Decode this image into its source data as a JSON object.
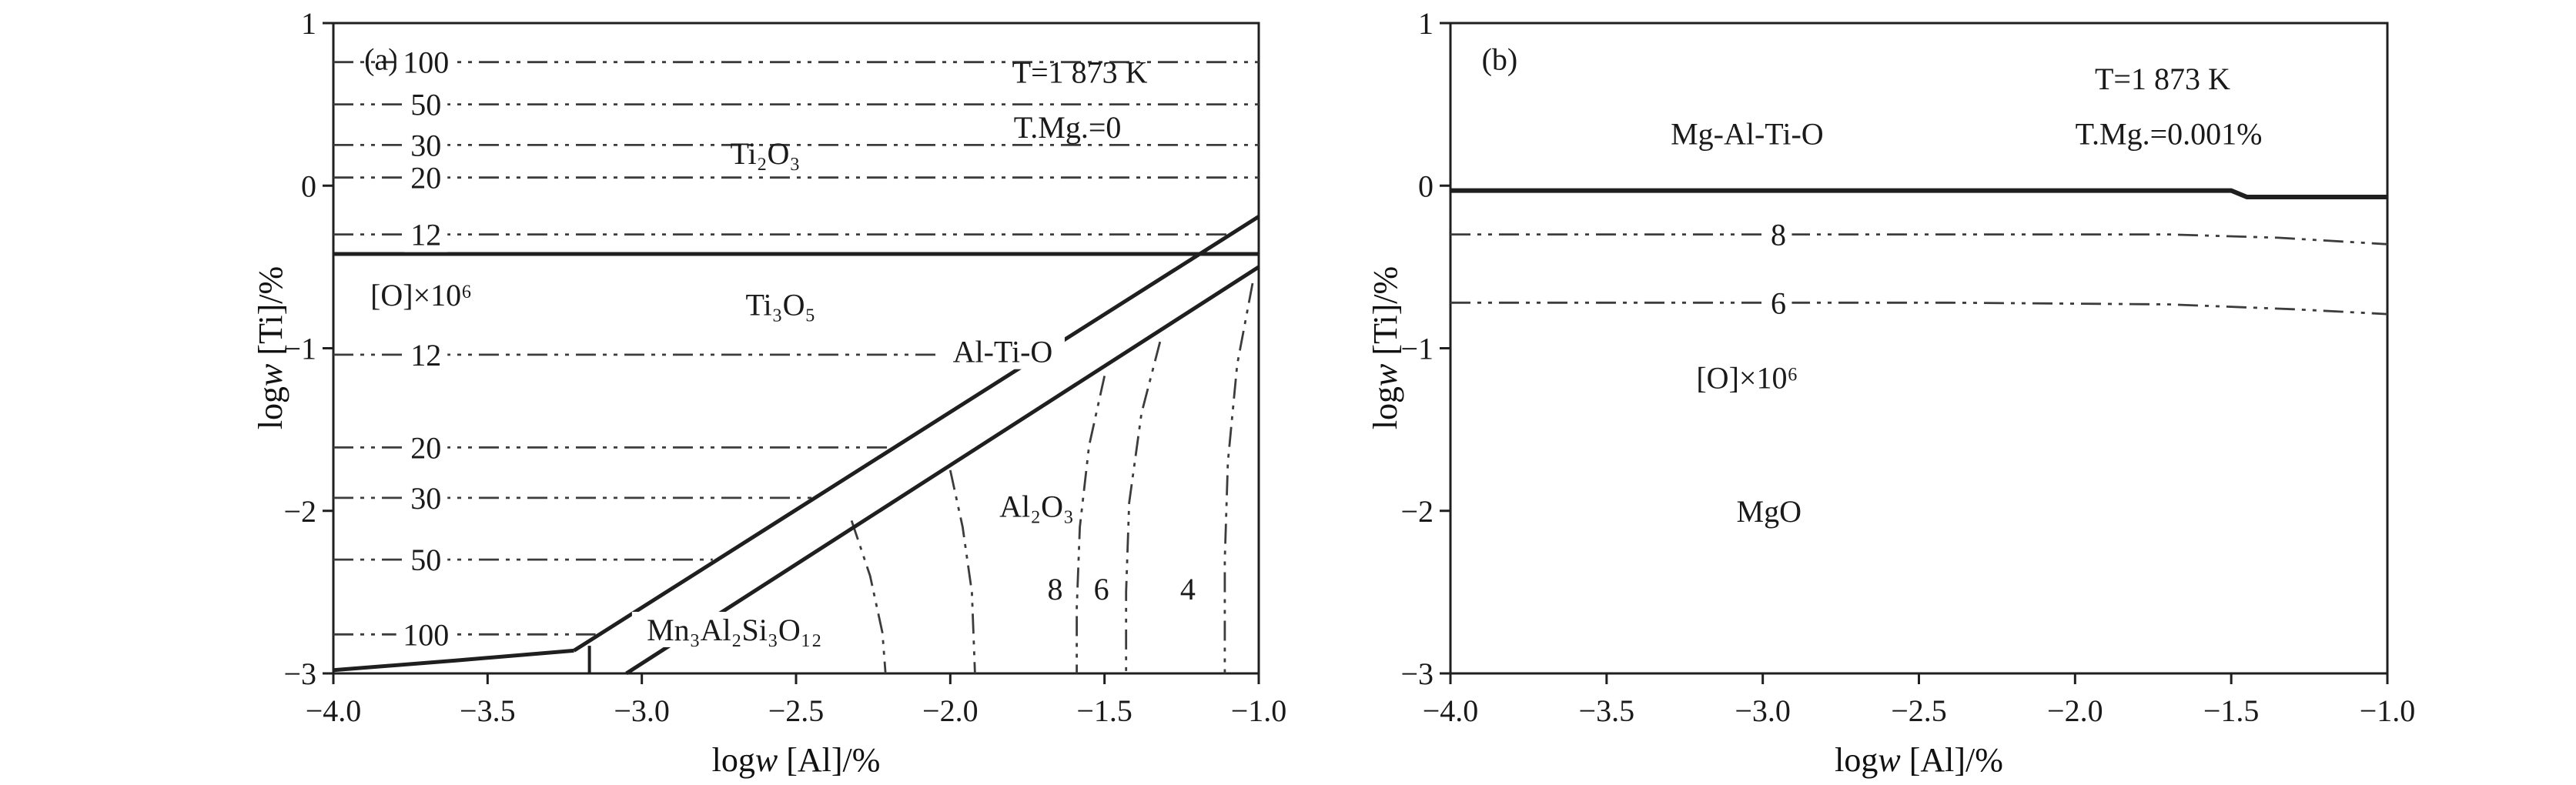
{
  "figure": {
    "background": "#ffffff",
    "ink": "#1f1f1f",
    "contour_color": "#3c3c3c"
  },
  "chart_data": [
    {
      "id": "a",
      "type": "line",
      "panel_label": "(a)",
      "conditions": [
        "T=1 873 K",
        "T.Mg.=0"
      ],
      "xlabel": "logw [Al]/%",
      "ylabel": "logw [Ti]/%",
      "xlabel_parts": {
        "pre": "log",
        "italic": "w",
        "post": " [Al]/%"
      },
      "ylabel_parts": {
        "pre": "log",
        "italic": "w",
        "post": " [Ti]/%"
      },
      "xlim": [
        -4.0,
        -1.0
      ],
      "ylim": [
        -3.0,
        1.0
      ],
      "grid": false,
      "xticks": [
        {
          "v": -4.0,
          "label": "−4.0"
        },
        {
          "v": -3.5,
          "label": "−3.5"
        },
        {
          "v": -3.0,
          "label": "−3.0"
        },
        {
          "v": -2.5,
          "label": "−2.5"
        },
        {
          "v": -2.0,
          "label": "−2.0"
        },
        {
          "v": -1.5,
          "label": "−1.5"
        },
        {
          "v": -1.0,
          "label": "−1.0"
        }
      ],
      "yticks": [
        {
          "v": 1,
          "label": "1"
        },
        {
          "v": 0,
          "label": "0"
        },
        {
          "v": -1,
          "label": "−1"
        },
        {
          "v": -2,
          "label": "−2"
        },
        {
          "v": -3,
          "label": "−3"
        }
      ],
      "phase_boundaries": [
        {
          "name": "Ti2O3-Ti3O5-boundary",
          "width": 5,
          "points": [
            [
              -4.0,
              -0.42
            ],
            [
              -1.0,
              -0.42
            ]
          ]
        },
        {
          "name": "Al-Ti-O-upper-boundary",
          "width": 5,
          "points": [
            [
              -3.22,
              -2.86
            ],
            [
              -1.0,
              -0.19
            ]
          ]
        },
        {
          "name": "Al-Ti-O-lower-boundary",
          "width": 5,
          "points": [
            [
              -3.05,
              -3.0
            ],
            [
              -1.0,
              -0.5
            ]
          ]
        },
        {
          "name": "garnet-left-boundary",
          "width": 5,
          "points": [
            [
              -4.0,
              -2.98
            ],
            [
              -3.6,
              -2.92
            ],
            [
              -3.22,
              -2.86
            ]
          ]
        },
        {
          "name": "triple-point-tick",
          "width": 4,
          "points": [
            [
              -3.17,
              -2.83
            ],
            [
              -3.17,
              -3.0
            ]
          ]
        }
      ],
      "oxygen_contours": [
        {
          "value": 100,
          "points": [
            [
              -4.0,
              0.76
            ],
            [
              -1.0,
              0.76
            ]
          ]
        },
        {
          "value": 50,
          "points": [
            [
              -4.0,
              0.5
            ],
            [
              -1.0,
              0.5
            ]
          ]
        },
        {
          "value": 30,
          "points": [
            [
              -4.0,
              0.25
            ],
            [
              -1.0,
              0.25
            ]
          ]
        },
        {
          "value": 20,
          "points": [
            [
              -4.0,
              0.05
            ],
            [
              -1.0,
              0.05
            ]
          ]
        },
        {
          "value": 12,
          "points": [
            [
              -4.0,
              -0.3
            ],
            [
              -1.09,
              -0.3
            ]
          ]
        },
        {
          "value": 12,
          "points": [
            [
              -4.0,
              -1.04
            ],
            [
              -1.72,
              -1.04
            ]
          ]
        },
        {
          "value": 20,
          "points": [
            [
              -4.0,
              -1.61
            ],
            [
              -2.19,
              -1.61
            ]
          ]
        },
        {
          "value": 30,
          "points": [
            [
              -4.0,
              -1.92
            ],
            [
              -2.45,
              -1.92
            ]
          ]
        },
        {
          "value": 50,
          "points": [
            [
              -4.0,
              -2.3
            ],
            [
              -2.77,
              -2.3
            ]
          ]
        },
        {
          "value": 100,
          "points": [
            [
              -4.0,
              -2.76
            ],
            [
              -3.15,
              -2.76
            ]
          ]
        },
        {
          "value": 20,
          "points": [
            [
              -2.32,
              -2.06
            ],
            [
              -2.26,
              -2.4
            ],
            [
              -2.22,
              -2.75
            ],
            [
              -2.21,
              -3.0
            ]
          ]
        },
        {
          "value": 12,
          "points": [
            [
              -2.0,
              -1.75
            ],
            [
              -1.96,
              -2.1
            ],
            [
              -1.93,
              -2.5
            ],
            [
              -1.92,
              -3.0
            ]
          ]
        },
        {
          "value": 8,
          "points": [
            [
              -1.5,
              -1.17
            ],
            [
              -1.55,
              -1.6
            ],
            [
              -1.58,
              -2.1
            ],
            [
              -1.59,
              -2.6
            ],
            [
              -1.59,
              -3.0
            ]
          ]
        },
        {
          "value": 6,
          "points": [
            [
              -1.32,
              -0.96
            ],
            [
              -1.38,
              -1.4
            ],
            [
              -1.42,
              -1.95
            ],
            [
              -1.43,
              -2.5
            ],
            [
              -1.43,
              -3.0
            ]
          ]
        },
        {
          "value": 4,
          "points": [
            [
              -1.02,
              -0.6
            ],
            [
              -1.07,
              -1.1
            ],
            [
              -1.1,
              -1.7
            ],
            [
              -1.11,
              -2.3
            ],
            [
              -1.11,
              -3.0
            ]
          ]
        }
      ],
      "labels": [
        {
          "text": "(a)",
          "x": -3.9,
          "y": 0.78,
          "anchor": "start",
          "name": "panel-label"
        },
        {
          "text": "T=1 873 K",
          "x": -1.58,
          "y": 0.7,
          "name": "condition-temperature"
        },
        {
          "text": "T.Mg.=0",
          "x": -1.62,
          "y": 0.36,
          "name": "condition-magnesium"
        },
        {
          "text": "Ti₂O₃",
          "x": -2.6,
          "y": 0.2,
          "name": "region-label"
        },
        {
          "text": "Ti₃O₅",
          "x": -2.55,
          "y": -0.73,
          "name": "region-label"
        },
        {
          "text": "Al-Ti-O",
          "x": -1.83,
          "y": -1.02,
          "mask": true,
          "name": "region-label"
        },
        {
          "text": "Al₂O₃",
          "x": -1.72,
          "y": -1.97,
          "name": "region-label"
        },
        {
          "text": "Mn₃Al₂Si₃O₁₂",
          "x": -2.7,
          "y": -2.73,
          "mask": true,
          "name": "region-label"
        },
        {
          "text": "[O]×10⁶",
          "x": -3.88,
          "y": -0.67,
          "anchor": "start",
          "name": "oxygen-scale-label"
        },
        {
          "text": "100",
          "x": -3.7,
          "y": 0.76,
          "mask": true,
          "name": "contour-label"
        },
        {
          "text": "50",
          "x": -3.7,
          "y": 0.5,
          "mask": true,
          "name": "contour-label"
        },
        {
          "text": "30",
          "x": -3.7,
          "y": 0.25,
          "mask": true,
          "name": "contour-label"
        },
        {
          "text": "20",
          "x": -3.7,
          "y": 0.05,
          "mask": true,
          "name": "contour-label"
        },
        {
          "text": "12",
          "x": -3.7,
          "y": -0.3,
          "mask": true,
          "name": "contour-label"
        },
        {
          "text": "12",
          "x": -3.7,
          "y": -1.04,
          "mask": true,
          "name": "contour-label"
        },
        {
          "text": "20",
          "x": -3.7,
          "y": -1.61,
          "mask": true,
          "name": "contour-label"
        },
        {
          "text": "30",
          "x": -3.7,
          "y": -1.92,
          "mask": true,
          "name": "contour-label"
        },
        {
          "text": "50",
          "x": -3.7,
          "y": -2.3,
          "mask": true,
          "name": "contour-label"
        },
        {
          "text": "100",
          "x": -3.7,
          "y": -2.76,
          "mask": true,
          "name": "contour-label"
        },
        {
          "text": "8",
          "x": -1.66,
          "y": -2.48,
          "name": "contour-label"
        },
        {
          "text": "6",
          "x": -1.51,
          "y": -2.48,
          "name": "contour-label"
        },
        {
          "text": "4",
          "x": -1.23,
          "y": -2.48,
          "name": "contour-label"
        }
      ]
    },
    {
      "id": "b",
      "type": "line",
      "panel_label": "(b)",
      "conditions": [
        "T=1 873 K",
        "T.Mg.=0.001%"
      ],
      "xlabel": "logw [Al]/%",
      "ylabel": "logw [Ti]/%",
      "xlabel_parts": {
        "pre": "log",
        "italic": "w",
        "post": " [Al]/%"
      },
      "ylabel_parts": {
        "pre": "log",
        "italic": "w",
        "post": " [Ti]/%"
      },
      "xlim": [
        -4.0,
        -1.0
      ],
      "ylim": [
        -3.0,
        1.0
      ],
      "grid": false,
      "xticks": [
        {
          "v": -4.0,
          "label": "−4.0"
        },
        {
          "v": -3.5,
          "label": "−3.5"
        },
        {
          "v": -3.0,
          "label": "−3.0"
        },
        {
          "v": -2.5,
          "label": "−2.5"
        },
        {
          "v": -2.0,
          "label": "−2.0"
        },
        {
          "v": -1.5,
          "label": "−1.5"
        },
        {
          "v": -1.0,
          "label": "−1.0"
        }
      ],
      "yticks": [
        {
          "v": 1,
          "label": "1"
        },
        {
          "v": 0,
          "label": "0"
        },
        {
          "v": -1,
          "label": "−1"
        },
        {
          "v": -2,
          "label": "−2"
        },
        {
          "v": -3,
          "label": "−3"
        }
      ],
      "phase_boundaries": [
        {
          "name": "MgO-MgAlTiO-boundary",
          "width": 6,
          "points": [
            [
              -4.0,
              -0.03
            ],
            [
              -1.5,
              -0.03
            ],
            [
              -1.45,
              -0.07
            ],
            [
              -1.0,
              -0.07
            ]
          ]
        }
      ],
      "oxygen_contours": [
        {
          "value": 8,
          "points": [
            [
              -4.0,
              -0.3
            ],
            [
              -1.7,
              -0.3
            ],
            [
              -1.35,
              -0.32
            ],
            [
              -1.0,
              -0.36
            ]
          ]
        },
        {
          "value": 6,
          "points": [
            [
              -4.0,
              -0.72
            ],
            [
              -2.4,
              -0.72
            ],
            [
              -1.7,
              -0.73
            ],
            [
              -1.3,
              -0.76
            ],
            [
              -1.0,
              -0.79
            ]
          ]
        }
      ],
      "labels": [
        {
          "text": "(b)",
          "x": -3.9,
          "y": 0.78,
          "anchor": "start",
          "name": "panel-label"
        },
        {
          "text": "Mg-Al-Ti-O",
          "x": -3.05,
          "y": 0.32,
          "name": "region-label"
        },
        {
          "text": "T=1 873 K",
          "x": -1.72,
          "y": 0.66,
          "name": "condition-temperature"
        },
        {
          "text": "T.Mg.=0.001%",
          "x": -1.7,
          "y": 0.32,
          "name": "condition-magnesium"
        },
        {
          "text": "8",
          "x": -2.95,
          "y": -0.3,
          "mask": true,
          "name": "contour-label"
        },
        {
          "text": "6",
          "x": -2.95,
          "y": -0.72,
          "mask": true,
          "name": "contour-label"
        },
        {
          "text": "[O]×10⁶",
          "x": -3.05,
          "y": -1.18,
          "name": "oxygen-scale-label"
        },
        {
          "text": "MgO",
          "x": -2.98,
          "y": -2.0,
          "name": "region-label"
        }
      ]
    }
  ]
}
